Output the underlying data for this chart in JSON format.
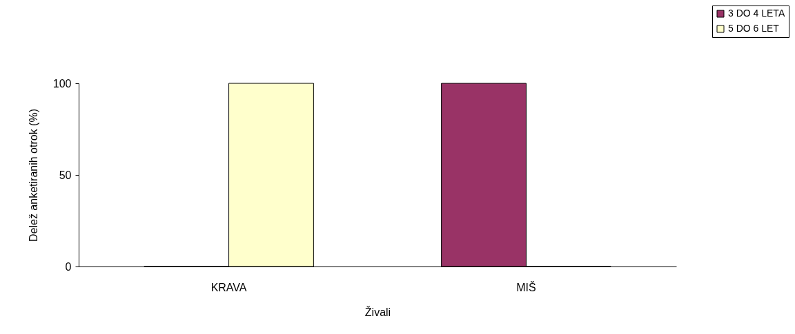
{
  "chart_data": {
    "type": "bar",
    "xlabel": "Živali",
    "ylabel": "Delež anketiranih otrok (%)",
    "categories": [
      "KRAVA",
      "MIŠ"
    ],
    "series": [
      {
        "name": "3 DO 4 LETA",
        "color": "#993366",
        "values": [
          0,
          100
        ]
      },
      {
        "name": "5 DO 6 LET",
        "color": "#ffffcc",
        "values": [
          100,
          0
        ]
      }
    ],
    "ylim": [
      0,
      100
    ],
    "yticks": [
      0,
      50,
      100
    ],
    "grid": false,
    "legend": "top right"
  }
}
